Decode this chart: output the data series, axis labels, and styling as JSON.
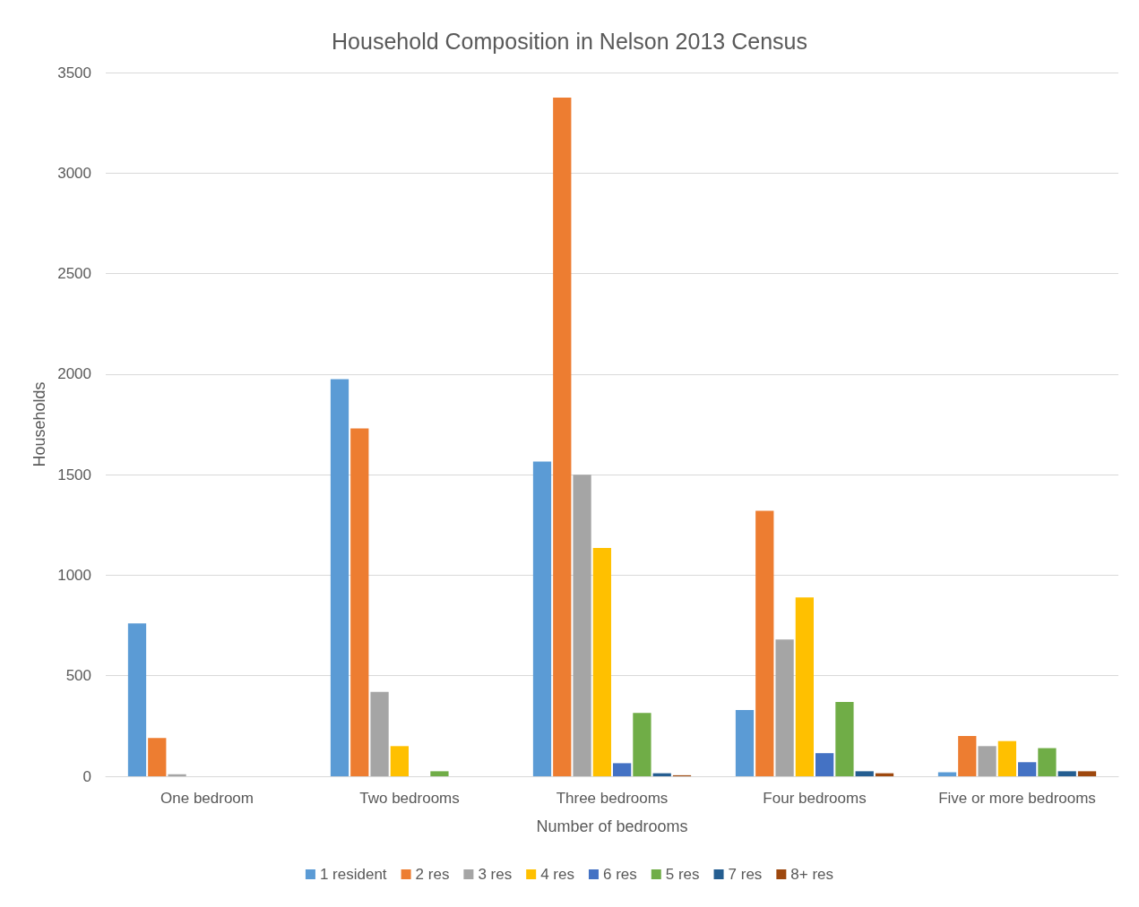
{
  "chart_data": {
    "type": "bar",
    "title": "Household Composition in Nelson 2013 Census",
    "xlabel": "Number of bedrooms",
    "ylabel": "Households",
    "categories": [
      "One bedroom",
      "Two bedrooms",
      "Three bedrooms",
      "Four bedrooms",
      "Five or more bedrooms"
    ],
    "series": [
      {
        "name": "1 resident",
        "color": "#5b9bd5",
        "values": [
          760,
          1975,
          1565,
          330,
          20
        ]
      },
      {
        "name": "2 res",
        "color": "#ed7d31",
        "values": [
          190,
          1730,
          3375,
          1320,
          200
        ]
      },
      {
        "name": "3 res",
        "color": "#a5a5a5",
        "values": [
          10,
          420,
          1500,
          680,
          150
        ]
      },
      {
        "name": "4 res",
        "color": "#ffc000",
        "values": [
          null,
          150,
          1135,
          890,
          175
        ]
      },
      {
        "name": "6 res",
        "color": "#4472c4",
        "values": [
          null,
          null,
          65,
          115,
          70
        ]
      },
      {
        "name": "5 res",
        "color": "#70ad47",
        "values": [
          null,
          25,
          315,
          370,
          140
        ]
      },
      {
        "name": "7 res",
        "color": "#255e91",
        "values": [
          null,
          null,
          15,
          25,
          25
        ]
      },
      {
        "name": "8+ res",
        "color": "#9e480e",
        "values": [
          null,
          null,
          5,
          15,
          25
        ]
      }
    ],
    "ylim": [
      0,
      3500
    ],
    "yticks": [
      0,
      500,
      1000,
      1500,
      2000,
      2500,
      3000,
      3500
    ],
    "grid": "y",
    "legend": "bottom"
  }
}
